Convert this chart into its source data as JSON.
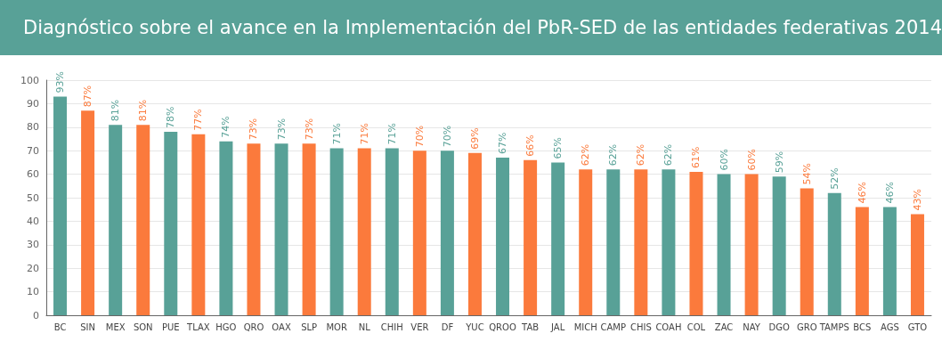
{
  "chart_data": {
    "type": "bar",
    "title": "Diagnóstico sobre el avance en la Implementación del PbR-SED de las entidades federativas 2014",
    "categories": [
      "BC",
      "SIN",
      "MEX",
      "SON",
      "PUE",
      "TLAX",
      "HGO",
      "QRO",
      "OAX",
      "SLP",
      "MOR",
      "NL",
      "CHIH",
      "VER",
      "DF",
      "YUC",
      "QROO",
      "TAB",
      "JAL",
      "MICH",
      "CAMP",
      "CHIS",
      "COAH",
      "COL",
      "ZAC",
      "NAY",
      "DGO",
      "GRO",
      "TAMPS",
      "BCS",
      "AGS",
      "GTO"
    ],
    "values": [
      93,
      87,
      81,
      81,
      78,
      77,
      74,
      73,
      73,
      73,
      71,
      71,
      71,
      70,
      70,
      69,
      67,
      66,
      65,
      62,
      62,
      62,
      62,
      61,
      60,
      60,
      59,
      54,
      52,
      46,
      46,
      43
    ],
    "value_labels": [
      "93%",
      "87%",
      "81%",
      "81%",
      "78%",
      "77%",
      "74%",
      "73%",
      "73%",
      "73%",
      "71%",
      "71%",
      "71%",
      "70%",
      "70%",
      "69%",
      "67%",
      "66%",
      "65%",
      "62%",
      "62%",
      "62%",
      "62%",
      "61%",
      "60%",
      "60%",
      "59%",
      "54%",
      "52%",
      "46%",
      "46%",
      "43%"
    ],
    "colors": [
      "#58a197",
      "#fb7a3c",
      "#58a197",
      "#fb7a3c",
      "#58a197",
      "#fb7a3c",
      "#58a197",
      "#fb7a3c",
      "#58a197",
      "#fb7a3c",
      "#58a197",
      "#fb7a3c",
      "#58a197",
      "#fb7a3c",
      "#58a197",
      "#fb7a3c",
      "#58a197",
      "#fb7a3c",
      "#58a197",
      "#fb7a3c",
      "#58a197",
      "#fb7a3c",
      "#58a197",
      "#fb7a3c",
      "#58a197",
      "#fb7a3c",
      "#58a197",
      "#fb7a3c",
      "#58a197",
      "#fb7a3c",
      "#58a197",
      "#fb7a3c"
    ],
    "ylim": [
      0,
      100
    ],
    "yticks": [
      0,
      10,
      20,
      30,
      40,
      50,
      60,
      70,
      80,
      90,
      100
    ],
    "grid": "y"
  }
}
